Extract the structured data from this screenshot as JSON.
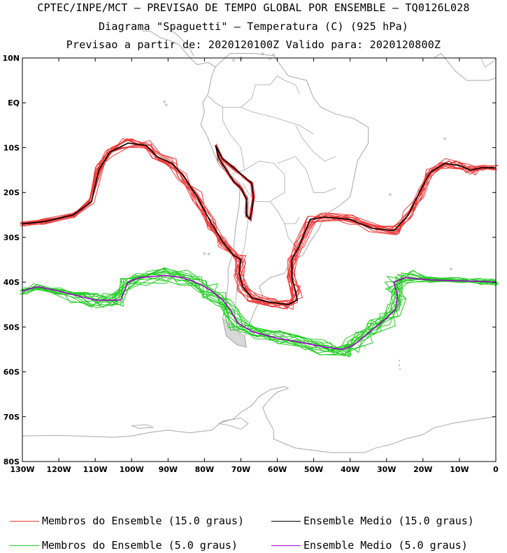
{
  "title": {
    "line1": "CPTEC/INPE/MCT – PREVISAO DE TEMPO GLOBAL POR ENSEMBLE – TQ0126L028",
    "line2": "Diagrama \"Spaguetti\" – Temperatura (C) (925 hPa)",
    "line3": "Previsao a partir de: 2020120100Z  Valido para: 2020120800Z"
  },
  "map": {
    "lon_range": [
      -130,
      0
    ],
    "lat_range": [
      -80,
      10
    ],
    "lat_ticks": [
      "10N",
      "EQ",
      "10S",
      "20S",
      "30S",
      "40S",
      "50S",
      "60S",
      "70S",
      "80S"
    ],
    "lon_ticks": [
      "130W",
      "120W",
      "110W",
      "100W",
      "90W",
      "80W",
      "70W",
      "60W",
      "50W",
      "40W",
      "30W",
      "20W",
      "10W",
      "0"
    ],
    "colors": {
      "members_15": "#ee3a3a",
      "mean_15": "#000000",
      "members_5": "#22cc22",
      "mean_5": "#a000c8",
      "coast": "#a8a8a8"
    },
    "mean_15_line": [
      [
        -130,
        -27
      ],
      [
        -124,
        -26.5
      ],
      [
        -116,
        -25
      ],
      [
        -111,
        -22
      ],
      [
        -109,
        -15
      ],
      [
        -106,
        -11
      ],
      [
        -101,
        -9
      ],
      [
        -96,
        -9.5
      ],
      [
        -93,
        -12
      ],
      [
        -89,
        -13.5
      ],
      [
        -86,
        -16
      ],
      [
        -82,
        -21
      ],
      [
        -78,
        -27
      ],
      [
        -75,
        -31
      ],
      [
        -72,
        -34
      ],
      [
        -70,
        -35
      ],
      [
        -70.5,
        -38
      ],
      [
        -69.5,
        -41
      ],
      [
        -67,
        -43.5
      ],
      [
        -62,
        -44.5
      ],
      [
        -57,
        -45
      ],
      [
        -54.5,
        -44
      ],
      [
        -55,
        -42
      ],
      [
        -56,
        -39
      ],
      [
        -56,
        -35
      ],
      [
        -54,
        -32
      ],
      [
        -51,
        -26
      ],
      [
        -47,
        -25.5
      ],
      [
        -40,
        -26
      ],
      [
        -34,
        -28
      ],
      [
        -28,
        -28.5
      ],
      [
        -24,
        -25
      ],
      [
        -21,
        -20
      ],
      [
        -18,
        -15.5
      ],
      [
        -14,
        -13.5
      ],
      [
        -10,
        -14
      ],
      [
        -7,
        -15
      ],
      [
        -4,
        -14.5
      ],
      [
        0,
        -14.5
      ]
    ],
    "mean_15_loop": [
      [
        -77,
        -9.5
      ],
      [
        -75,
        -12.5
      ],
      [
        -72,
        -14.5
      ],
      [
        -69,
        -16.5
      ],
      [
        -67,
        -18
      ],
      [
        -66.5,
        -21
      ],
      [
        -67,
        -24
      ],
      [
        -67.5,
        -26
      ],
      [
        -68.5,
        -25
      ],
      [
        -68.5,
        -21.5
      ],
      [
        -70,
        -19
      ],
      [
        -72,
        -17.5
      ],
      [
        -74,
        -15
      ],
      [
        -76,
        -12.5
      ],
      [
        -77,
        -9.5
      ]
    ],
    "mean_5_line": [
      [
        -130,
        -42
      ],
      [
        -126,
        -41
      ],
      [
        -120,
        -42
      ],
      [
        -115,
        -43
      ],
      [
        -110,
        -44
      ],
      [
        -106,
        -44
      ],
      [
        -103,
        -44
      ],
      [
        -101,
        -40
      ],
      [
        -98,
        -39
      ],
      [
        -91,
        -38.5
      ],
      [
        -86,
        -39
      ],
      [
        -81,
        -40.5
      ],
      [
        -78,
        -42
      ],
      [
        -75,
        -44
      ],
      [
        -73,
        -46
      ],
      [
        -71,
        -49
      ],
      [
        -67,
        -51
      ],
      [
        -60,
        -52.5
      ],
      [
        -53,
        -53.5
      ],
      [
        -47,
        -54.5
      ],
      [
        -42,
        -55
      ],
      [
        -39,
        -54
      ],
      [
        -36,
        -52
      ],
      [
        -33,
        -50
      ],
      [
        -30,
        -48
      ],
      [
        -27.5,
        -46
      ],
      [
        -27,
        -43
      ],
      [
        -28,
        -40
      ],
      [
        -25,
        -39
      ],
      [
        -18,
        -39.5
      ],
      [
        -10,
        -39.7
      ],
      [
        -5,
        -39.8
      ],
      [
        0,
        -40
      ]
    ]
  },
  "legend": [
    {
      "label": "Membros do Ensemble (15.0 graus)",
      "color": "#ee3a3a"
    },
    {
      "label": "Ensemble Medio (15.0 graus)",
      "color": "#000000"
    },
    {
      "label": "Membros do Ensemble (5.0 graus)",
      "color": "#22cc22"
    },
    {
      "label": "Ensemble Medio (5.0 graus)",
      "color": "#a000c8"
    }
  ]
}
